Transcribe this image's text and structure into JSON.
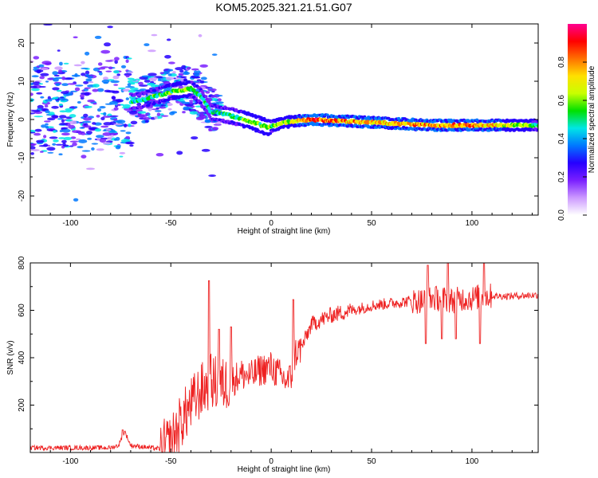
{
  "figure_title": "KOM5.2025.321.21.51.G07",
  "chart_data": [
    {
      "type": "heatmap",
      "title": "KOM5.2025.321.21.51.G07",
      "xlabel": "Height of straight line (km)",
      "ylabel": "Frequency (Hz)",
      "xlim": [
        -120,
        133
      ],
      "ylim": [
        -25,
        25
      ],
      "xticks": [
        -100,
        -50,
        0,
        50,
        100
      ],
      "xtick_labels": [
        "-100",
        "-50",
        "0",
        "50",
        "100"
      ],
      "yticks": [
        -20,
        -10,
        0,
        10,
        20
      ],
      "ytick_labels": [
        "-20",
        "-10",
        "0",
        "10",
        "20"
      ],
      "colorbar": {
        "label": "Normalized spectral amplitude",
        "range": [
          0,
          1
        ],
        "ticks": [
          0.0,
          0.2,
          0.4,
          0.6,
          0.8
        ],
        "tick_labels": [
          "0.0",
          "0.2",
          "0.4",
          "0.6",
          "0.8"
        ],
        "colormap": [
          "#ffffff",
          "#cc99ff",
          "#7a1fff",
          "#2600ff",
          "#0078ff",
          "#00e6e6",
          "#00e000",
          "#c8ff00",
          "#ffe000",
          "#ff7000",
          "#ff0000",
          "#ff0090"
        ]
      },
      "ridge": {
        "x": [
          -120,
          -100,
          -80,
          -65,
          -55,
          -48,
          -40,
          -35,
          -30,
          -20,
          -10,
          -5,
          -2,
          0,
          5,
          10,
          20,
          40,
          60,
          80,
          100,
          120,
          133
        ],
        "freq_hz": [
          3.0,
          3.5,
          4.0,
          5.0,
          6.5,
          7.5,
          8.0,
          6.0,
          2.0,
          1.0,
          -0.5,
          -1.5,
          -2.0,
          -1.8,
          -1.0,
          -0.5,
          0.0,
          -0.5,
          -1.0,
          -1.5,
          -1.5,
          -1.5,
          -1.5
        ],
        "amplitude": [
          0.3,
          0.3,
          0.35,
          0.45,
          0.5,
          0.55,
          0.5,
          0.45,
          0.4,
          0.45,
          0.55,
          0.55,
          0.5,
          0.5,
          0.55,
          0.6,
          0.85,
          0.75,
          0.7,
          0.8,
          0.75,
          0.6,
          0.45
        ]
      }
    },
    {
      "type": "line",
      "xlabel": "Height of straight line (km)",
      "ylabel": "SNR (v/v)",
      "xlim": [
        -120,
        133
      ],
      "ylim": [
        0,
        800
      ],
      "xticks": [
        -100,
        -50,
        0,
        50,
        100
      ],
      "xtick_labels": [
        "-100",
        "-50",
        "0",
        "50",
        "100"
      ],
      "yticks": [
        200,
        400,
        600,
        800
      ],
      "ytick_labels": [
        "200",
        "400",
        "600",
        "800"
      ],
      "color": "#ee2222",
      "series": [
        {
          "name": "SNR",
          "x": [
            -120,
            -100,
            -80,
            -76,
            -73,
            -70,
            -60,
            -55,
            -50,
            -45,
            -40,
            -35,
            -32,
            -30,
            -25,
            -20,
            -15,
            -10,
            -5,
            0,
            5,
            8,
            10,
            12,
            15,
            20,
            25,
            30,
            40,
            50,
            60,
            70,
            75,
            80,
            85,
            90,
            95,
            100,
            105,
            110,
            120,
            133
          ],
          "y": [
            20,
            20,
            20,
            30,
            90,
            30,
            20,
            15,
            40,
            130,
            200,
            260,
            280,
            300,
            280,
            300,
            330,
            320,
            350,
            360,
            320,
            300,
            320,
            420,
            440,
            540,
            560,
            580,
            600,
            620,
            630,
            640,
            640,
            650,
            650,
            640,
            650,
            650,
            660,
            660,
            660,
            665
          ]
        }
      ],
      "spikes": [
        {
          "x": -74,
          "y": 95
        },
        {
          "x": -31,
          "y": 725
        },
        {
          "x": -26,
          "y": 520
        },
        {
          "x": -20,
          "y": 530
        },
        {
          "x": 11,
          "y": 645
        },
        {
          "x": 77,
          "y": 460
        },
        {
          "x": 78,
          "y": 790
        },
        {
          "x": 85,
          "y": 480
        },
        {
          "x": 88,
          "y": 800
        },
        {
          "x": 92,
          "y": 480
        },
        {
          "x": 104,
          "y": 460
        },
        {
          "x": 106,
          "y": 800
        }
      ]
    }
  ]
}
